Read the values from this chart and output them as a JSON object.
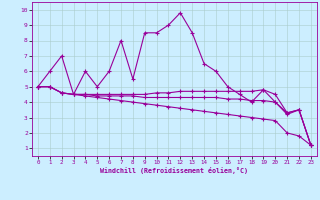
{
  "title": "",
  "xlabel": "Windchill (Refroidissement éolien,°C)",
  "bg_color": "#cceeff",
  "line_color": "#990099",
  "grid_color": "#aacccc",
  "xlim": [
    -0.5,
    23.5
  ],
  "ylim": [
    0.5,
    10.5
  ],
  "xticks": [
    0,
    1,
    2,
    3,
    4,
    5,
    6,
    7,
    8,
    9,
    10,
    11,
    12,
    13,
    14,
    15,
    16,
    17,
    18,
    19,
    20,
    21,
    22,
    23
  ],
  "yticks": [
    1,
    2,
    3,
    4,
    5,
    6,
    7,
    8,
    9,
    10
  ],
  "series1_x": [
    0,
    1,
    2,
    3,
    4,
    5,
    6,
    7,
    8,
    9,
    10,
    11,
    12,
    13,
    14,
    15,
    16,
    17,
    18,
    19,
    20,
    21,
    22,
    23
  ],
  "series1_y": [
    5.0,
    6.0,
    7.0,
    4.5,
    6.0,
    5.0,
    6.0,
    8.0,
    5.5,
    8.5,
    8.5,
    9.0,
    9.8,
    8.5,
    6.5,
    6.0,
    5.0,
    4.5,
    4.0,
    4.8,
    4.0,
    3.2,
    3.5,
    1.2
  ],
  "series2_x": [
    0,
    1,
    2,
    3,
    4,
    5,
    6,
    7,
    8,
    9,
    10,
    11,
    12,
    13,
    14,
    15,
    16,
    17,
    18,
    19,
    20,
    21,
    22,
    23
  ],
  "series2_y": [
    5.0,
    5.0,
    4.6,
    4.5,
    4.5,
    4.5,
    4.5,
    4.5,
    4.5,
    4.5,
    4.6,
    4.6,
    4.7,
    4.7,
    4.7,
    4.7,
    4.7,
    4.7,
    4.7,
    4.8,
    4.5,
    3.3,
    3.5,
    1.2
  ],
  "series3_x": [
    0,
    1,
    2,
    3,
    4,
    5,
    6,
    7,
    8,
    9,
    10,
    11,
    12,
    13,
    14,
    15,
    16,
    17,
    18,
    19,
    20,
    21,
    22,
    23
  ],
  "series3_y": [
    5.0,
    5.0,
    4.6,
    4.5,
    4.5,
    4.4,
    4.4,
    4.4,
    4.4,
    4.3,
    4.3,
    4.3,
    4.3,
    4.3,
    4.3,
    4.3,
    4.2,
    4.2,
    4.1,
    4.1,
    4.0,
    3.3,
    3.5,
    1.2
  ],
  "series4_x": [
    0,
    1,
    2,
    3,
    4,
    5,
    6,
    7,
    8,
    9,
    10,
    11,
    12,
    13,
    14,
    15,
    16,
    17,
    18,
    19,
    20,
    21,
    22,
    23
  ],
  "series4_y": [
    5.0,
    5.0,
    4.6,
    4.5,
    4.4,
    4.3,
    4.2,
    4.1,
    4.0,
    3.9,
    3.8,
    3.7,
    3.6,
    3.5,
    3.4,
    3.3,
    3.2,
    3.1,
    3.0,
    2.9,
    2.8,
    2.0,
    1.8,
    1.2
  ],
  "marker": "+",
  "markersize": 3,
  "linewidth": 0.8
}
